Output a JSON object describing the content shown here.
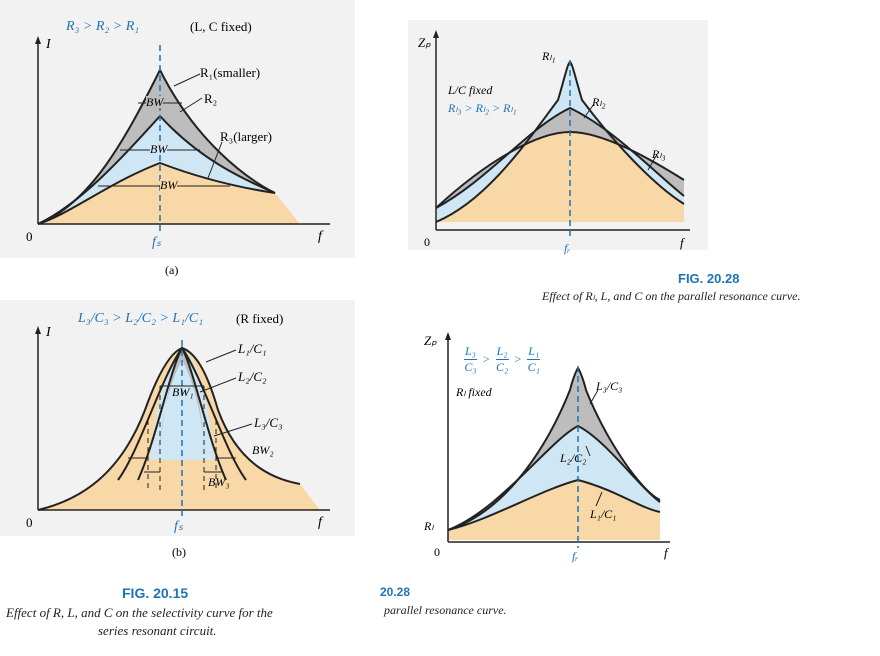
{
  "panel_a": {
    "condition": "R₃ > R₂ > R₁",
    "fixed_note": "(L, C fixed)",
    "y_axis": "I",
    "x_axis": "f",
    "origin": "0",
    "center_label": "fₛ",
    "curve_labels": [
      "R₁(smaller)",
      "R₂",
      "R₃(larger)"
    ],
    "bw_labels": [
      "BW",
      "BW",
      "BW"
    ],
    "sublabel": "(a)"
  },
  "panel_b": {
    "condition": "L₃/C₃ > L₂/C₂ > L₁/C₁",
    "fixed_note": "(R fixed)",
    "y_axis": "I",
    "x_axis": "f",
    "origin": "0",
    "center_label": "fₛ",
    "curve_labels": [
      "L₁/C₁",
      "L₂/C₂",
      "L₃/C₃"
    ],
    "bw_labels": [
      "BW₁",
      "BW₂",
      "BW₃"
    ],
    "sublabel": "(b)"
  },
  "fig_left": {
    "label": "FIG. 20.15",
    "caption_line1": "Effect of R, L, and C on the selectivity curve for the",
    "caption_line2": "series resonant circuit."
  },
  "panel_c": {
    "y_axis": "Zₚ",
    "x_axis": "f",
    "origin": "0",
    "center_label": "fᵣ",
    "fixed_note": "L/C fixed",
    "condition": "Rₗ₃ > Rₗ₂ > Rₗ₁",
    "curve_labels": [
      "Rₗ₁",
      "Rₗ₂",
      "Rₗ₃"
    ]
  },
  "fig_right": {
    "label": "FIG. 20.28",
    "caption": "Effect of Rₗ, L, and C on the parallel resonance curve."
  },
  "panel_d": {
    "y_axis": "Zₚ",
    "x_axis": "f",
    "origin": "0",
    "start_label": "Rₗ",
    "center_label": "fᵣ",
    "fixed_note": "Rₗ fixed",
    "condition_terms": [
      {
        "num": "L₃",
        "den": "C₃"
      },
      {
        "num": "L₂",
        "den": "C₂"
      },
      {
        "num": "L₁",
        "den": "C₁"
      }
    ],
    "condition_op": ">",
    "curve_labels": [
      "L₃/C₃",
      "L₂/C₂",
      "L₁/C₁"
    ]
  },
  "fig_bottom_partial": {
    "label": "20.28",
    "caption": "parallel resonance curve."
  },
  "colors": {
    "tan": "#f9d8a8",
    "light_blue": "#cfe6f5",
    "gray": "#bdbdbd",
    "accent_blue": "#1f73b7"
  }
}
